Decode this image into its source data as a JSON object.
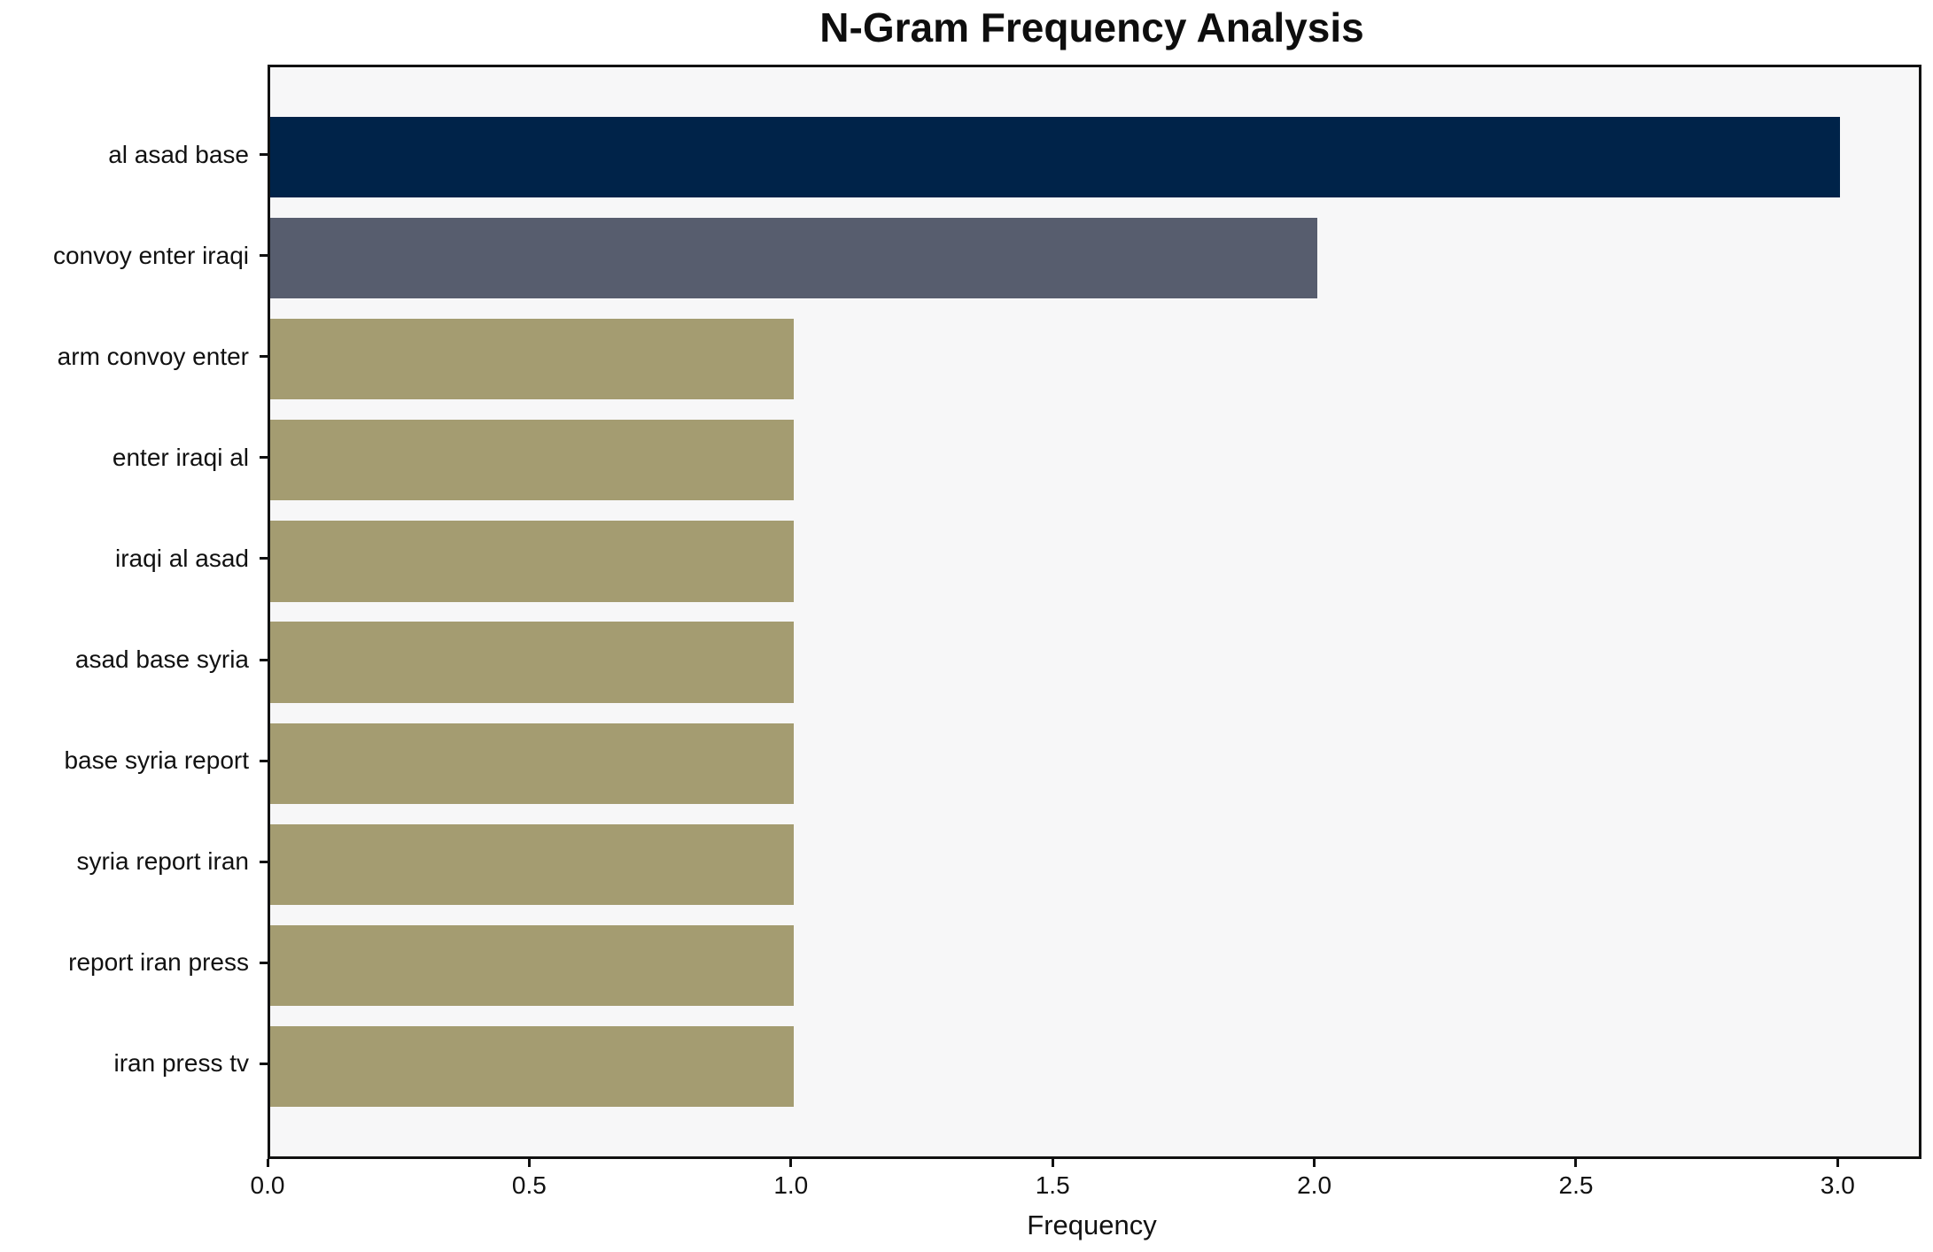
{
  "chart_data": {
    "type": "bar",
    "orientation": "horizontal",
    "title": "N-Gram Frequency Analysis",
    "xlabel": "Frequency",
    "ylabel": "",
    "categories": [
      "al asad base",
      "convoy enter iraqi",
      "arm convoy enter",
      "enter iraqi al",
      "iraqi al asad",
      "asad base syria",
      "base syria report",
      "syria report iran",
      "report iran press",
      "iran press tv"
    ],
    "values": [
      3,
      2,
      1,
      1,
      1,
      1,
      1,
      1,
      1,
      1
    ],
    "bar_colors": [
      "#002349",
      "#575d6e",
      "#a49c71",
      "#a49c71",
      "#a49c71",
      "#a49c71",
      "#a49c71",
      "#a49c71",
      "#a49c71",
      "#a49c71"
    ],
    "xlim": [
      0,
      3.15
    ],
    "x_ticks": [
      {
        "value": 0,
        "label": "0.0"
      },
      {
        "value": 0.5,
        "label": "0.5"
      },
      {
        "value": 1,
        "label": "1.0"
      },
      {
        "value": 1.5,
        "label": "1.5"
      },
      {
        "value": 2,
        "label": "2.0"
      },
      {
        "value": 2.5,
        "label": "2.5"
      },
      {
        "value": 3,
        "label": "3.0"
      }
    ],
    "grid": false,
    "legend": null,
    "colors": {
      "plot_background": "#f7f7f8",
      "figure_background": "#ffffff",
      "axis": "#111111",
      "text": "#111111"
    }
  }
}
